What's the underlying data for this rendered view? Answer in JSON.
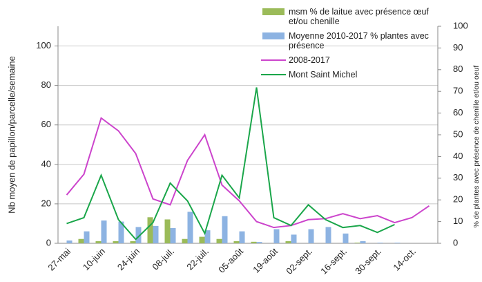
{
  "chart_data": {
    "type": "bar_line",
    "ylabel": "Nb moyen de papillon/parcelle/semaine",
    "y2label": "% de plantes avec présence de chenille et/ou oeuf",
    "categories": [
      "27-mai",
      null,
      "10-juin",
      null,
      "24-juin",
      null,
      "08-juil.",
      null,
      "22-juil.",
      null,
      "05-août",
      null,
      "19-août",
      null,
      "02-sept.",
      null,
      "16-sept.",
      null,
      "30-sept.",
      null,
      "14-oct.",
      null
    ],
    "ylim": [
      0,
      110
    ],
    "yticks": [
      0,
      20,
      40,
      60,
      80,
      100
    ],
    "y2lim": [
      0,
      100
    ],
    "y2ticks": [
      0,
      10,
      20,
      30,
      40,
      50,
      60,
      70,
      80,
      90,
      100
    ],
    "grid": true,
    "series": [
      {
        "name": "msm % de laitue avec présence œuf et/ou chenille",
        "kind": "bar",
        "axis": "y2",
        "color": "#9bbb59",
        "values": [
          0,
          2,
          1,
          1,
          1,
          12,
          11,
          2,
          3,
          2,
          1,
          0.7,
          0,
          1,
          0,
          0,
          0,
          0.3,
          0,
          0,
          0,
          0
        ]
      },
      {
        "name": "Moyenne 2010-2017 % plantes avec présence",
        "kind": "bar",
        "axis": "y2",
        "color": "#8db3e2",
        "values": [
          1.3,
          5.5,
          10.5,
          10,
          7.5,
          8,
          7,
          14.5,
          6,
          12.5,
          5.5,
          0.6,
          6.5,
          4,
          6.5,
          7.5,
          4.5,
          1,
          0.3,
          0.3,
          0,
          0
        ]
      },
      {
        "name": "2008-2017",
        "kind": "line",
        "color": "#cc44cc",
        "values": [
          24.5,
          35,
          63.5,
          57,
          45.5,
          22.5,
          19.5,
          42,
          55,
          29.5,
          21.5,
          11,
          8,
          9,
          12,
          12.5,
          15,
          12.5,
          14,
          10.5,
          13,
          19
        ]
      },
      {
        "name": "Mont Saint Michel",
        "kind": "line",
        "color": "#1aa64a",
        "values": [
          10,
          13,
          34.5,
          12,
          2,
          10.5,
          30.5,
          21.5,
          5,
          34.5,
          23,
          79,
          13,
          9,
          19.5,
          12,
          8,
          9,
          5.5,
          9.5,
          null,
          null
        ]
      }
    ]
  }
}
